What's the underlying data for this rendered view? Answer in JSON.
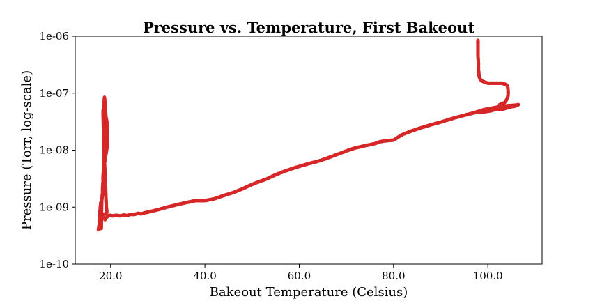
{
  "chart_data": {
    "type": "scatter",
    "title": "Pressure vs. Temperature, First Bakeout",
    "xlabel": "Bakeout Temperature (Celsius)",
    "ylabel": "Pressure (Torr, log-scale)",
    "xlim": [
      12.5,
      111.5
    ],
    "ylim": [
      1e-10,
      1e-06
    ],
    "yscale": "log",
    "grid": false,
    "legend": "none",
    "x_ticks": [
      {
        "value": 20,
        "label": "20.0"
      },
      {
        "value": 40,
        "label": "40.0"
      },
      {
        "value": 60,
        "label": "60.0"
      },
      {
        "value": 80,
        "label": "80.0"
      },
      {
        "value": 100,
        "label": "100.0"
      }
    ],
    "y_ticks": [
      {
        "value": 1e-10,
        "label": "1e-10"
      },
      {
        "value": 1e-09,
        "label": "1e-09"
      },
      {
        "value": 1e-08,
        "label": "1e-08"
      },
      {
        "value": 1e-07,
        "label": "1e-07"
      },
      {
        "value": 1e-06,
        "label": "1e-06"
      }
    ],
    "series": [
      {
        "color": "#d62728",
        "points": [
          [
            17.4,
            4e-10
          ],
          [
            17.5,
            4.5e-10
          ],
          [
            17.6,
            5e-10
          ],
          [
            17.6,
            6e-10
          ],
          [
            17.7,
            7e-10
          ],
          [
            17.7,
            8e-10
          ],
          [
            17.8,
            9e-10
          ],
          [
            17.8,
            1e-09
          ],
          [
            17.9,
            1.1e-09
          ],
          [
            17.9,
            1.2e-09
          ],
          [
            18.0,
            5.5e-10
          ],
          [
            18.0,
            4.2e-10
          ],
          [
            18.1,
            1.3e-09
          ],
          [
            18.2,
            1.5e-09
          ],
          [
            18.3,
            1.8e-09
          ],
          [
            18.3,
            2.2e-09
          ],
          [
            18.4,
            2.8e-09
          ],
          [
            18.4,
            3.5e-09
          ],
          [
            18.5,
            4.5e-09
          ],
          [
            18.5,
            6e-09
          ],
          [
            18.6,
            8e-09
          ],
          [
            18.6,
            1e-08
          ],
          [
            18.4,
            5e-08
          ],
          [
            18.6,
            5.5e-08
          ],
          [
            18.7,
            8.5e-08
          ],
          [
            18.9,
            4.8e-08
          ],
          [
            19.0,
            3.8e-08
          ],
          [
            19.2,
            3.2e-08
          ],
          [
            19.3,
            1.2e-08
          ],
          [
            18.7,
            6e-09
          ],
          [
            18.8,
            4e-09
          ],
          [
            18.9,
            2.5e-09
          ],
          [
            19.0,
            1.5e-09
          ],
          [
            19.1,
            1e-09
          ],
          [
            19.2,
            8e-10
          ],
          [
            18.2,
            7e-10
          ],
          [
            18.5,
            6.5e-10
          ],
          [
            18.8,
            6e-10
          ],
          [
            19.1,
            6.5e-10
          ],
          [
            19.4,
            7e-10
          ],
          [
            19.8,
            7.2e-10
          ],
          [
            20.5,
            7e-10
          ],
          [
            21.2,
            7.2e-10
          ],
          [
            22.0,
            7e-10
          ],
          [
            22.8,
            7.3e-10
          ],
          [
            23.5,
            7.1e-10
          ],
          [
            24.3,
            7.5e-10
          ],
          [
            25.0,
            7.4e-10
          ],
          [
            25.8,
            7.8e-10
          ],
          [
            26.5,
            7.6e-10
          ],
          [
            27.3,
            8e-10
          ],
          [
            28.0,
            8.2e-10
          ],
          [
            29.0,
            8.6e-10
          ],
          [
            30.0,
            9e-10
          ],
          [
            31.0,
            9.5e-10
          ],
          [
            32.0,
            1e-09
          ],
          [
            33.0,
            1.05e-09
          ],
          [
            34.0,
            1.1e-09
          ],
          [
            35.0,
            1.15e-09
          ],
          [
            36.0,
            1.2e-09
          ],
          [
            37.0,
            1.25e-09
          ],
          [
            38.0,
            1.3e-09
          ],
          [
            39.0,
            1.3e-09
          ],
          [
            40.0,
            1.3e-09
          ],
          [
            41.0,
            1.35e-09
          ],
          [
            42.0,
            1.4e-09
          ],
          [
            43.0,
            1.5e-09
          ],
          [
            44.0,
            1.6e-09
          ],
          [
            45.0,
            1.7e-09
          ],
          [
            46.0,
            1.8e-09
          ],
          [
            47.0,
            1.95e-09
          ],
          [
            48.0,
            2.1e-09
          ],
          [
            49.0,
            2.3e-09
          ],
          [
            50.0,
            2.5e-09
          ],
          [
            51.0,
            2.7e-09
          ],
          [
            52.0,
            2.9e-09
          ],
          [
            53.0,
            3.1e-09
          ],
          [
            54.0,
            3.4e-09
          ],
          [
            55.0,
            3.7e-09
          ],
          [
            56.0,
            4e-09
          ],
          [
            57.0,
            4.3e-09
          ],
          [
            58.0,
            4.6e-09
          ],
          [
            59.0,
            4.9e-09
          ],
          [
            60.0,
            5.2e-09
          ],
          [
            61.0,
            5.5e-09
          ],
          [
            62.0,
            5.8e-09
          ],
          [
            63.0,
            6.1e-09
          ],
          [
            64.0,
            6.4e-09
          ],
          [
            65.0,
            6.8e-09
          ],
          [
            66.0,
            7.3e-09
          ],
          [
            67.0,
            7.8e-09
          ],
          [
            68.0,
            8.4e-09
          ],
          [
            69.0,
            9e-09
          ],
          [
            70.0,
            9.7e-09
          ],
          [
            71.0,
            1.04e-08
          ],
          [
            72.0,
            1.1e-08
          ],
          [
            73.0,
            1.15e-08
          ],
          [
            74.0,
            1.2e-08
          ],
          [
            75.0,
            1.25e-08
          ],
          [
            76.0,
            1.3e-08
          ],
          [
            77.0,
            1.4e-08
          ],
          [
            78.0,
            1.45e-08
          ],
          [
            79.0,
            1.48e-08
          ],
          [
            80.0,
            1.5e-08
          ],
          [
            81.0,
            1.7e-08
          ],
          [
            82.0,
            1.9e-08
          ],
          [
            83.0,
            2.05e-08
          ],
          [
            84.0,
            2.2e-08
          ],
          [
            85.0,
            2.35e-08
          ],
          [
            86.0,
            2.5e-08
          ],
          [
            87.0,
            2.65e-08
          ],
          [
            88.0,
            2.8e-08
          ],
          [
            89.0,
            2.95e-08
          ],
          [
            90.0,
            3.1e-08
          ],
          [
            91.0,
            3.3e-08
          ],
          [
            92.0,
            3.5e-08
          ],
          [
            93.0,
            3.7e-08
          ],
          [
            94.0,
            3.9e-08
          ],
          [
            95.0,
            4.1e-08
          ],
          [
            96.0,
            4.3e-08
          ],
          [
            97.0,
            4.5e-08
          ],
          [
            98.0,
            4.8e-08
          ],
          [
            99.0,
            5.1e-08
          ],
          [
            100.0,
            5.3e-08
          ],
          [
            101.0,
            5.5e-08
          ],
          [
            102.0,
            5.7e-08
          ],
          [
            103.0,
            5.9e-08
          ],
          [
            104.0,
            6e-08
          ],
          [
            105.0,
            6.1e-08
          ],
          [
            106.0,
            6.2e-08
          ],
          [
            106.5,
            6.3e-08
          ],
          [
            106.0,
            6e-08
          ],
          [
            105.0,
            5.8e-08
          ],
          [
            104.0,
            5.5e-08
          ],
          [
            103.0,
            5.2e-08
          ],
          [
            102.0,
            5.3e-08
          ],
          [
            101.0,
            5e-08
          ],
          [
            100.0,
            4.8e-08
          ],
          [
            99.0,
            4.7e-08
          ],
          [
            98.0,
            4.6e-08
          ],
          [
            97.9,
            8.5e-07
          ],
          [
            97.9,
            4.5e-07
          ],
          [
            98.0,
            3.5e-07
          ],
          [
            98.0,
            3e-07
          ],
          [
            98.0,
            2.6e-07
          ],
          [
            98.1,
            2.2e-07
          ],
          [
            98.2,
            1.9e-07
          ],
          [
            98.5,
            1.7e-07
          ],
          [
            99.0,
            1.6e-07
          ],
          [
            99.5,
            1.55e-07
          ],
          [
            100.0,
            1.5e-07
          ],
          [
            100.5,
            1.5e-07
          ],
          [
            101.0,
            1.5e-07
          ],
          [
            101.5,
            1.5e-07
          ],
          [
            102.0,
            1.5e-07
          ],
          [
            102.5,
            1.5e-07
          ],
          [
            103.0,
            1.5e-07
          ],
          [
            103.5,
            1.45e-07
          ],
          [
            104.0,
            1.4e-07
          ],
          [
            104.2,
            1.3e-07
          ],
          [
            104.3,
            1.1e-07
          ],
          [
            104.3,
            9.5e-08
          ],
          [
            104.2,
            8.5e-08
          ],
          [
            104.0,
            7.8e-08
          ],
          [
            103.8,
            7.2e-08
          ],
          [
            103.5,
            6.8e-08
          ],
          [
            103.0,
            6.5e-08
          ],
          [
            102.5,
            6.3e-08
          ]
        ]
      }
    ]
  }
}
